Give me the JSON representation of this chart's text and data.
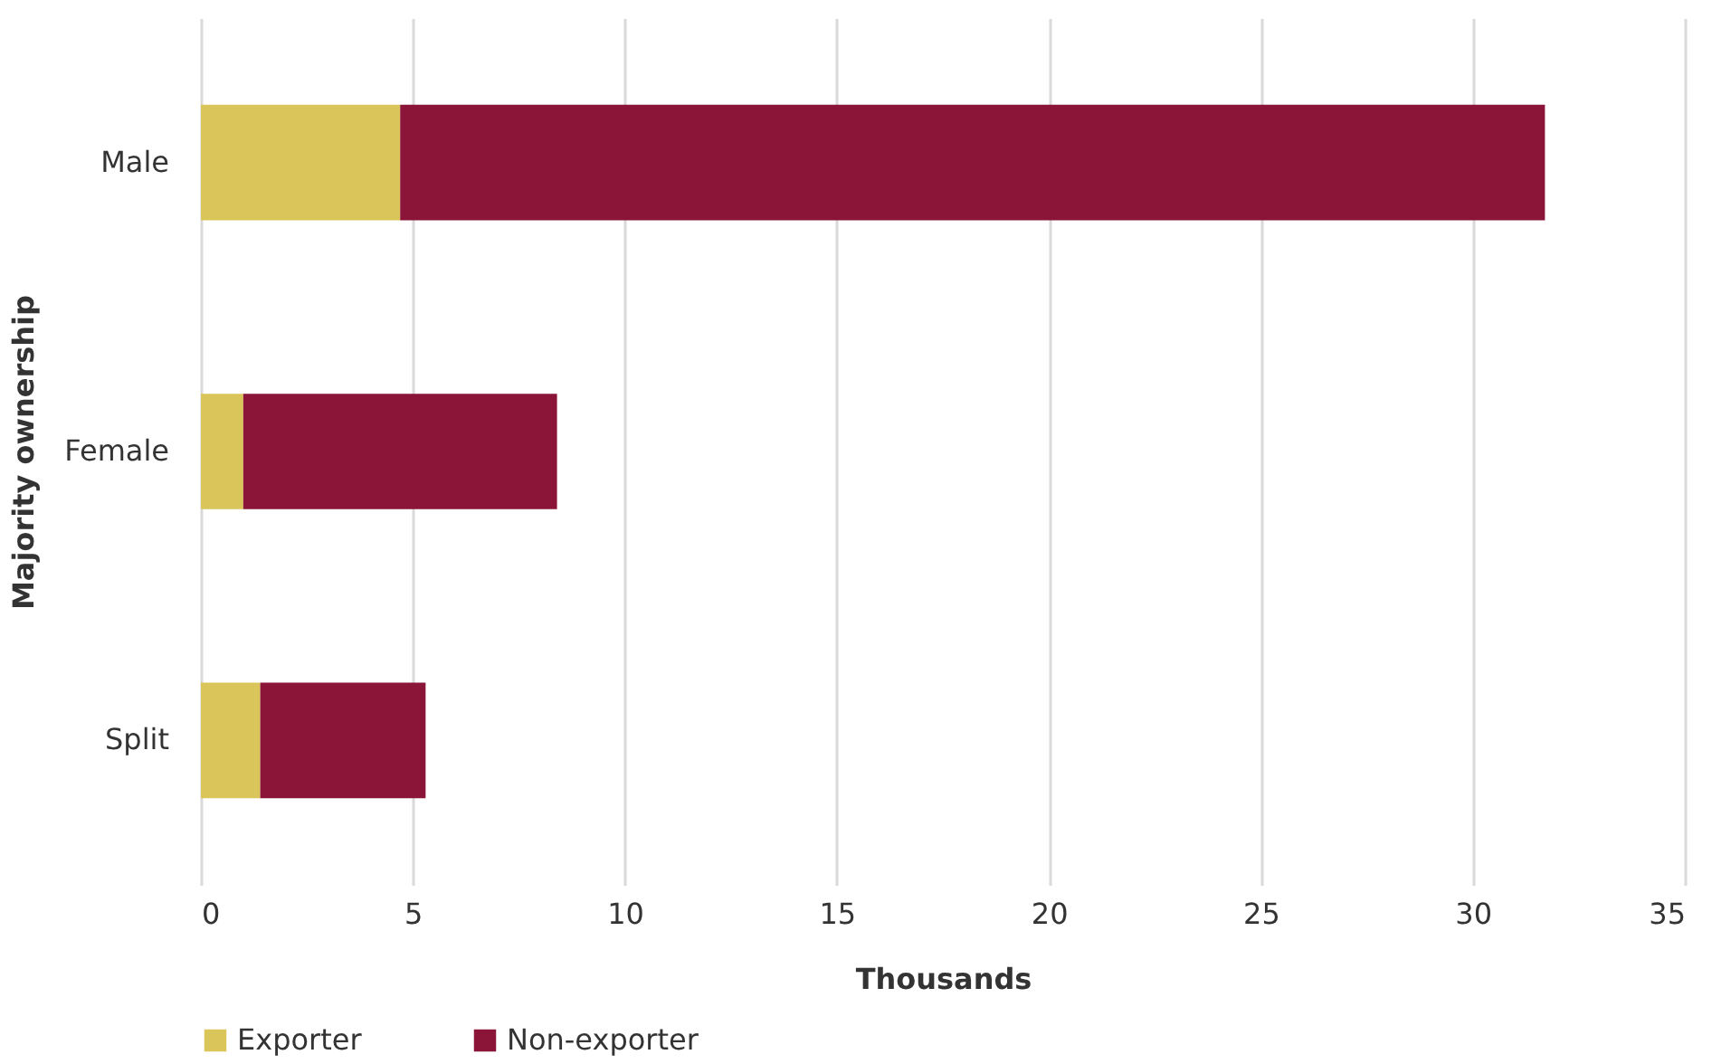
{
  "chart_data": {
    "type": "bar",
    "orientation": "horizontal",
    "stacked": true,
    "xlabel": "Thousands",
    "ylabel": "Majority ownership",
    "categories": [
      "Male",
      "Female",
      "Split"
    ],
    "series": [
      {
        "name": "Exporter",
        "color": "#d9c55a",
        "values": [
          4.7,
          1.0,
          1.4
        ]
      },
      {
        "name": "Non-exporter",
        "color": "#8a1538",
        "values": [
          27.0,
          7.4,
          3.9
        ]
      }
    ],
    "xlim": [
      0,
      35
    ],
    "xticks": [
      0,
      5,
      10,
      15,
      20,
      25,
      30,
      35
    ],
    "grid": "x",
    "legend": "bottom"
  }
}
